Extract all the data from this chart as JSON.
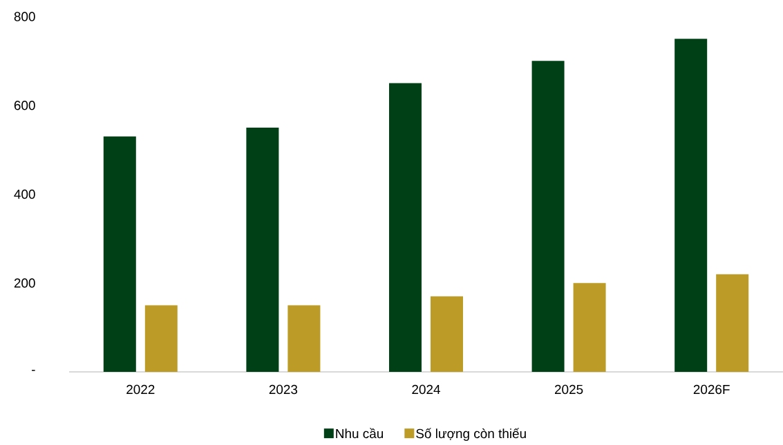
{
  "chart_data": {
    "type": "bar",
    "categories": [
      "2022",
      "2023",
      "2024",
      "2025",
      "2026F"
    ],
    "series": [
      {
        "name": "Nhu cầu",
        "color": "#004016",
        "values": [
          530,
          550,
          650,
          700,
          750
        ]
      },
      {
        "name": "Số lượng còn thiếu",
        "color": "#bc9c27",
        "values": [
          150,
          150,
          170,
          200,
          220
        ]
      }
    ],
    "ylim": [
      0,
      800
    ],
    "yticks": [
      {
        "value": 0,
        "label": "-"
      },
      200,
      400,
      600,
      800
    ],
    "legend": "bottom"
  }
}
